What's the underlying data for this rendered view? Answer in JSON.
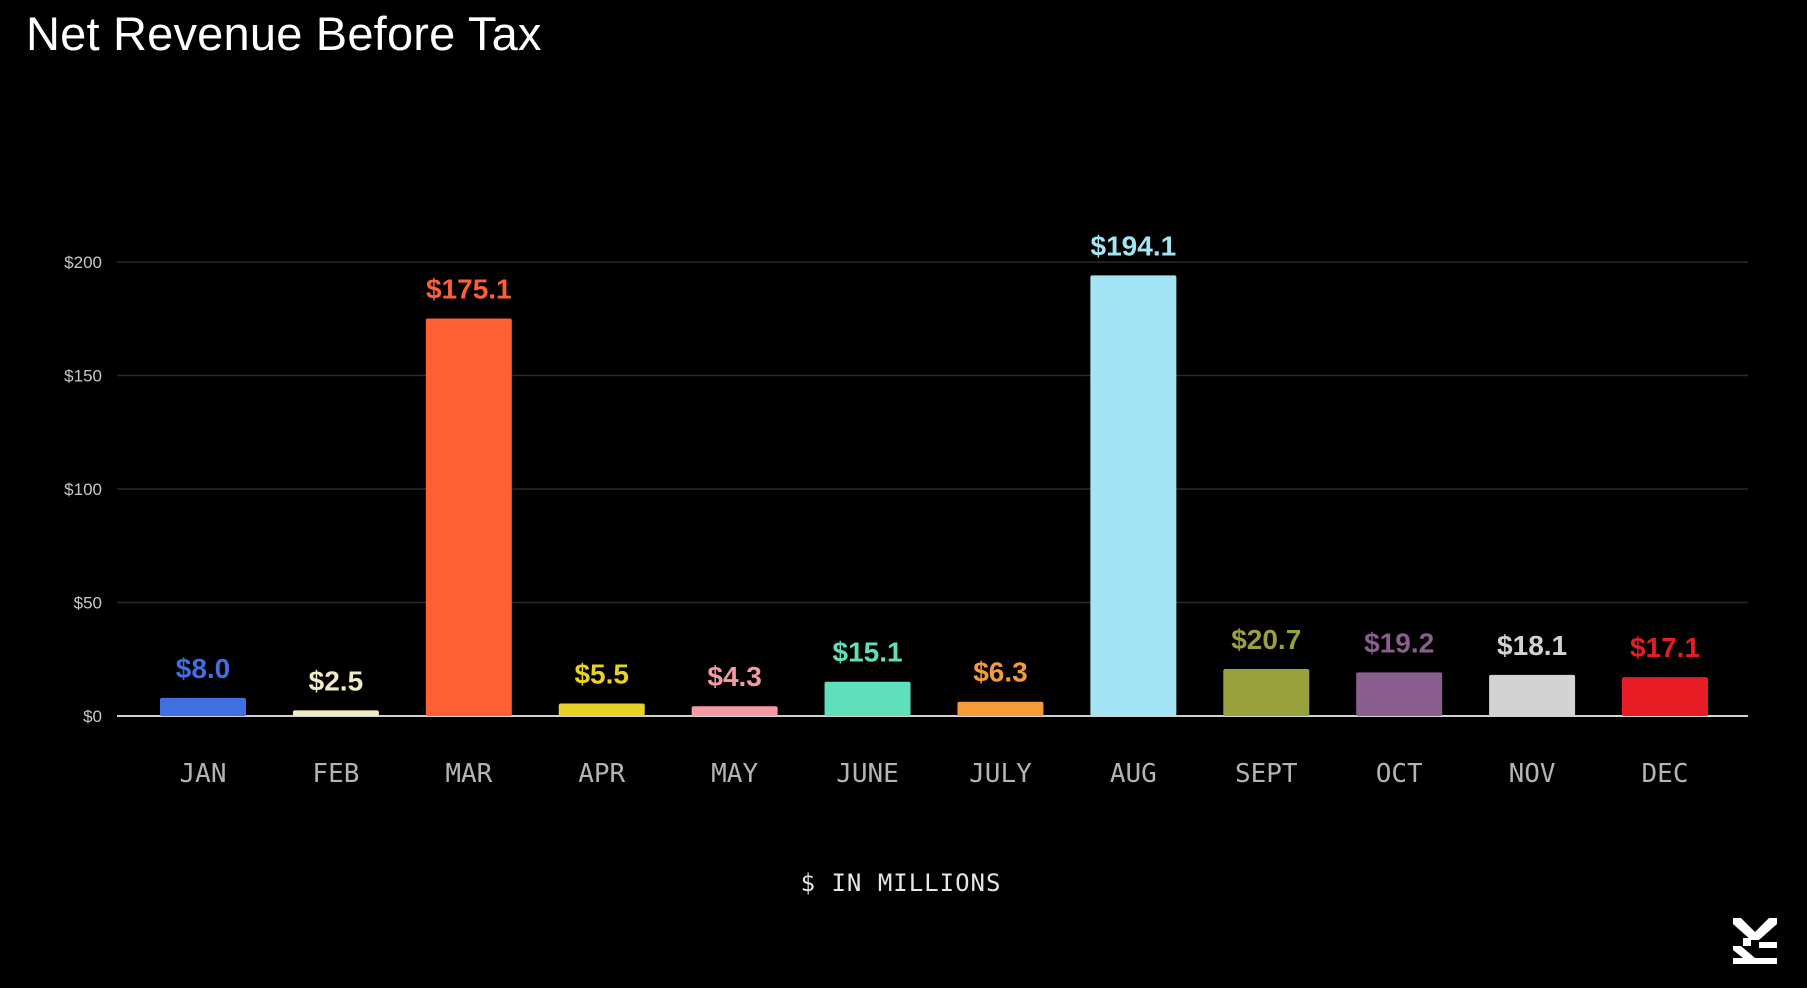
{
  "chart_data": {
    "type": "bar",
    "title": "Net Revenue Before Tax",
    "xlabel": "$ IN MILLIONS",
    "ylabel": "",
    "categories": [
      "JAN",
      "FEB",
      "MAR",
      "APR",
      "MAY",
      "JUNE",
      "JULY",
      "AUG",
      "SEPT",
      "OCT",
      "NOV",
      "DEC"
    ],
    "values": [
      8.0,
      2.5,
      175.1,
      5.5,
      4.3,
      15.1,
      6.3,
      194.1,
      20.7,
      19.2,
      18.1,
      17.1
    ],
    "data_labels": [
      "$8.0",
      "$2.5",
      "$175.1",
      "$5.5",
      "$4.3",
      "$15.1",
      "$6.3",
      "$194.1",
      "$20.7",
      "$19.2",
      "$18.1",
      "$17.1"
    ],
    "colors": [
      "#3f6fe0",
      "#f1ecc4",
      "#ff6033",
      "#e7d226",
      "#f59aa3",
      "#5fe0bb",
      "#f69b3a",
      "#a3e4f5",
      "#98a13b",
      "#8a5f8f",
      "#d3d3d3",
      "#e81c23"
    ],
    "ylim": [
      0,
      200
    ],
    "yticks": [
      0,
      50,
      100,
      150,
      200
    ],
    "ytick_labels": [
      "$0",
      "$50",
      "$100",
      "$150",
      "$200"
    ],
    "grid": true,
    "legend": "none"
  },
  "logo": {
    "icon": "brand-logo-icon",
    "color": "#ffffff"
  }
}
